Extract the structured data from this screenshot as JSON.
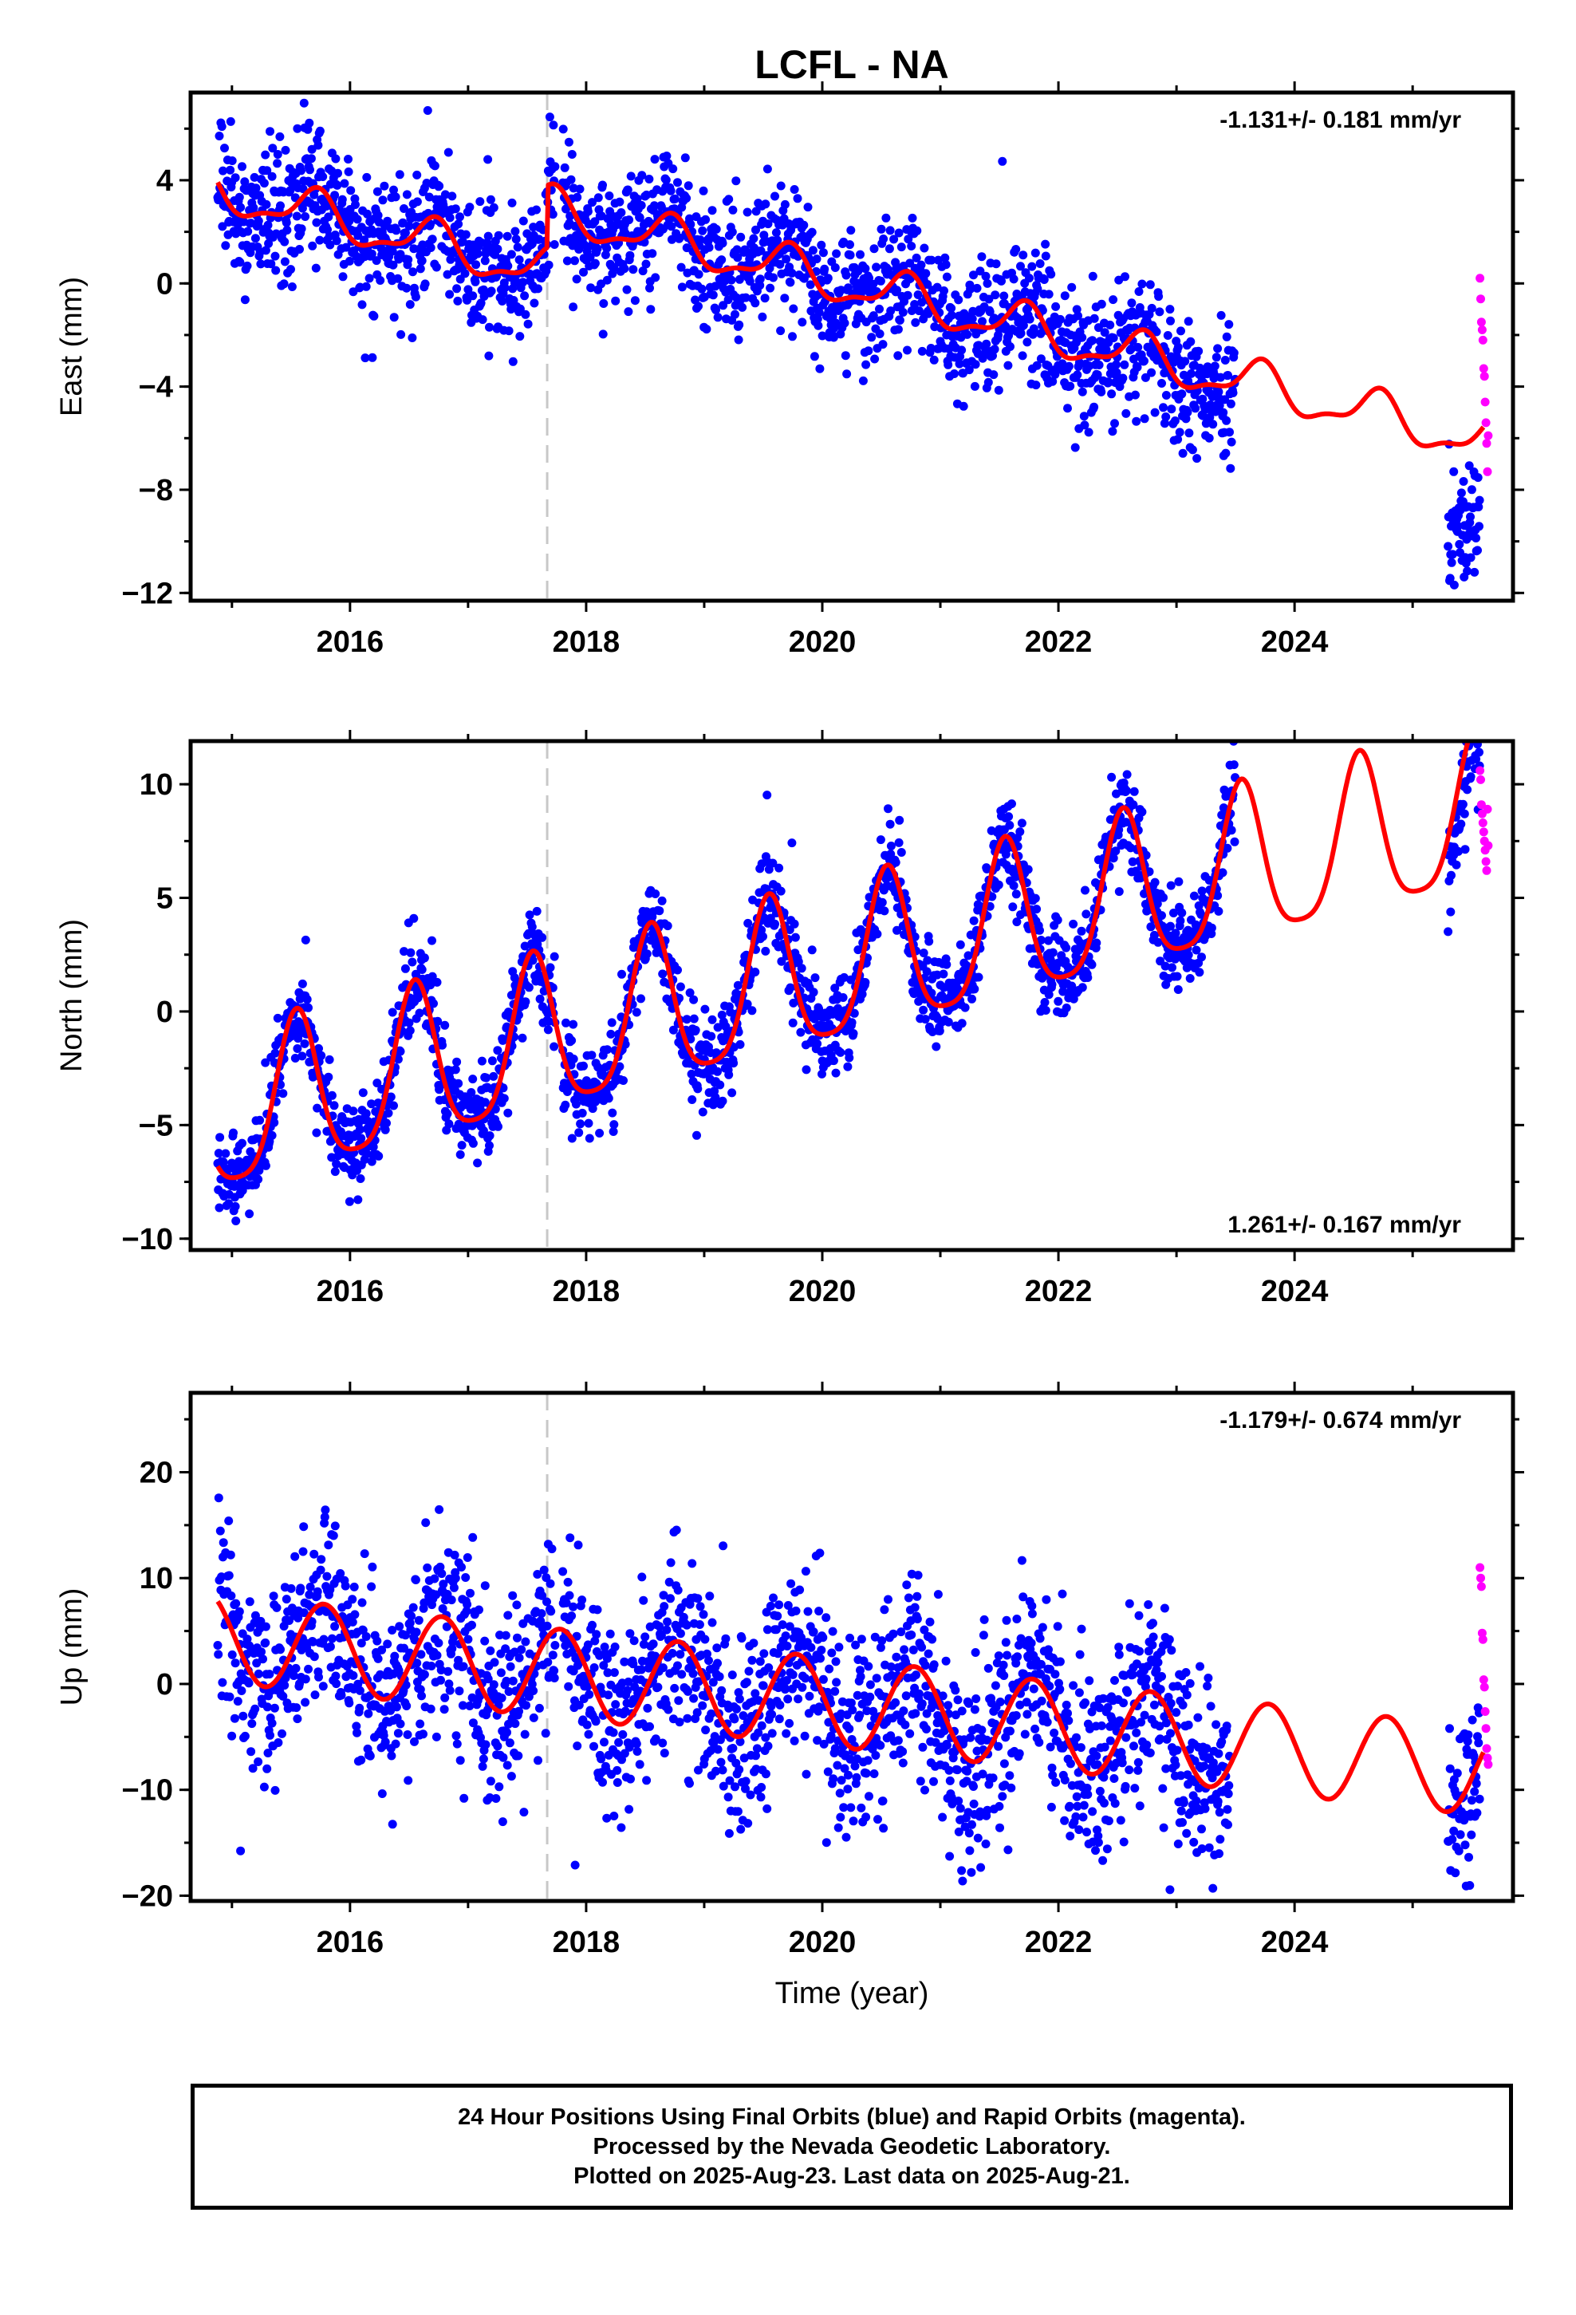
{
  "title": "LCFL - NA",
  "colors": {
    "final_orbits": "#0000ff",
    "rapid_orbits": "#ff00ff",
    "model_fit": "#ff0000",
    "equipment_change_line": "#c8c8c8",
    "frame": "#000000"
  },
  "xlabel": "Time (year)",
  "chart_data": [
    {
      "type": "scatter",
      "panel": "east",
      "ylabel": "East (mm)",
      "rate_annotation": "-1.131+/- 0.181 mm/yr",
      "rate_annotation_position": "top-right",
      "xlim": [
        2014.65,
        2025.85
      ],
      "ylim": [
        -12.3,
        7.4
      ],
      "x_ticks": [
        2016,
        2018,
        2020,
        2022,
        2024
      ],
      "y_ticks": [
        4,
        0,
        -4,
        -8,
        -12
      ],
      "y_tick_labels": [
        "4",
        "0",
        "−4",
        "−8",
        "−12"
      ],
      "equipment_change": 2017.67,
      "model": {
        "start": 2014.88,
        "end": 2025.6,
        "reference_year": 2014.88,
        "intercept": 3.6,
        "rate": -1.131,
        "annual_amplitude": 0.8,
        "annual_peak": 0.7,
        "semiannual_amplitude": 0.3,
        "semiannual_peak": 0.25,
        "offsets": [
          {
            "at": 2017.67,
            "size": 2.4
          }
        ]
      },
      "final_orbits": {
        "start": 2014.88,
        "end": 2023.5,
        "spacing_days": 1.6,
        "scatter": 1.25,
        "gap": [
          2017.74,
          2017.8
        ],
        "late_segment": {
          "start": 2025.3,
          "end": 2025.57,
          "scatter": 1.1,
          "mean_shift": -3.4
        }
      },
      "rapid_orbits": {
        "start": 2025.57,
        "end": 2025.64,
        "values": [
          0.2,
          -0.6,
          -1.5,
          -1.8,
          -2.2,
          -3.3,
          -3.6,
          -4.6,
          -5.4,
          -6.2,
          -7.3,
          -5.9
        ]
      }
    },
    {
      "type": "scatter",
      "panel": "north",
      "ylabel": "North (mm)",
      "rate_annotation": "1.261+/- 0.167 mm/yr",
      "rate_annotation_position": "bottom-right",
      "xlim": [
        2014.65,
        2025.85
      ],
      "ylim": [
        -10.5,
        11.9
      ],
      "x_ticks": [
        2016,
        2018,
        2020,
        2022,
        2024
      ],
      "y_ticks": [
        10,
        5,
        0,
        -5,
        -10
      ],
      "y_tick_labels": [
        "10",
        "5",
        "0",
        "−5",
        "−10"
      ],
      "equipment_change": 2017.67,
      "model": {
        "start": 2014.88,
        "end": 2025.6,
        "reference_year": 2014.88,
        "intercept": -4.8,
        "rate": 1.261,
        "annual_amplitude": 3.4,
        "annual_peak": 0.55,
        "semiannual_amplitude": 0.7,
        "semiannual_peak": 0.05,
        "offsets": []
      },
      "final_orbits": {
        "start": 2014.88,
        "end": 2023.5,
        "spacing_days": 1.6,
        "scatter": 1.0,
        "gap": [
          2017.74,
          2017.8
        ],
        "late_segment": {
          "start": 2025.3,
          "end": 2025.57,
          "scatter": 1.1,
          "mean_shift": -1.2
        }
      },
      "rapid_orbits": {
        "start": 2025.57,
        "end": 2025.64,
        "values": [
          10.6,
          10.2,
          9.1,
          8.7,
          8.3,
          7.9,
          7.5,
          7.1,
          6.6,
          6.2,
          8.9,
          7.3
        ]
      }
    },
    {
      "type": "scatter",
      "panel": "up",
      "ylabel": "Up (mm)",
      "rate_annotation": "-1.179+/- 0.674 mm/yr",
      "rate_annotation_position": "top-right",
      "xlim": [
        2014.65,
        2025.85
      ],
      "ylim": [
        -20.5,
        27.5
      ],
      "x_ticks": [
        2016,
        2018,
        2020,
        2022,
        2024
      ],
      "y_ticks": [
        20,
        10,
        0,
        -10,
        -20
      ],
      "y_tick_labels": [
        "20",
        "10",
        "0",
        "−10",
        "−20"
      ],
      "equipment_change": 2017.67,
      "model": {
        "start": 2014.88,
        "end": 2025.6,
        "reference_year": 2014.88,
        "intercept": 4.4,
        "rate": -1.179,
        "annual_amplitude": 4.2,
        "annual_peak": 0.78,
        "semiannual_amplitude": 0.0,
        "semiannual_peak": 0.0,
        "offsets": []
      },
      "final_orbits": {
        "start": 2014.88,
        "end": 2023.45,
        "spacing_days": 1.6,
        "scatter": 4.5,
        "gap": [
          2017.74,
          2017.8
        ],
        "late_segment": {
          "start": 2025.3,
          "end": 2025.57,
          "scatter": 3.5,
          "mean_shift": 0.0
        }
      },
      "rapid_orbits": {
        "start": 2025.57,
        "end": 2025.64,
        "values": [
          11.0,
          10.0,
          9.2,
          4.8,
          4.2,
          0.4,
          -0.3,
          -2.6,
          -4.2,
          -6.1,
          -7.0,
          -7.6
        ]
      }
    }
  ],
  "footer": {
    "line1": "24 Hour Positions Using Final Orbits (blue) and Rapid Orbits (magenta).",
    "line2": "Processed by the Nevada Geodetic Laboratory.",
    "line3": "Plotted on 2025-Aug-23. Last data on 2025-Aug-21."
  }
}
